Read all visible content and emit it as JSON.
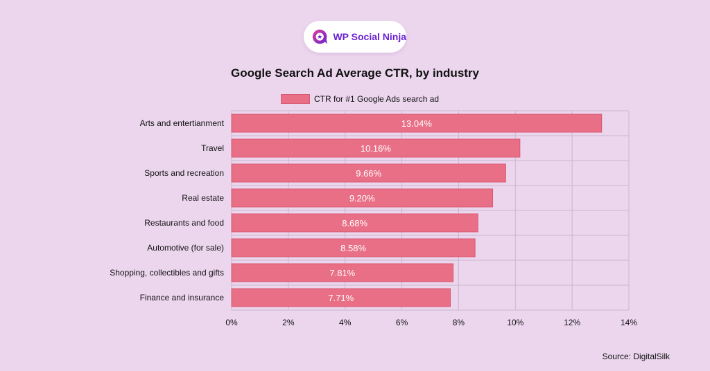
{
  "brand": {
    "name": "WP Social Ninja",
    "icon": "ninja-chat-icon",
    "colors": {
      "primary": "#6a1fd1",
      "accent": "#e0409a"
    }
  },
  "source": "Source: DigitalSilk",
  "colors": {
    "background": "#ecd6ee",
    "bar": "#e86f86",
    "bar_border": "#d85a73",
    "grid": "#c9b7cc"
  },
  "chart_data": {
    "type": "bar",
    "orientation": "horizontal",
    "title": "Google Search Ad Average CTR, by industry",
    "xlabel": "",
    "ylabel": "",
    "legend_position": "top-center",
    "grid": true,
    "xlim": [
      0,
      14
    ],
    "x_ticks": [
      "0%",
      "2%",
      "4%",
      "6%",
      "8%",
      "10%",
      "12%",
      "14%"
    ],
    "categories": [
      "Arts and entertianment",
      "Travel",
      "Sports and recreation",
      "Real estate",
      "Restaurants and food",
      "Automotive (for sale)",
      "Shopping, collectibles and gifts",
      "Finance and insurance"
    ],
    "series": [
      {
        "name": "CTR for #1 Google Ads search ad",
        "values": [
          13.04,
          10.16,
          9.66,
          9.2,
          8.68,
          8.58,
          7.81,
          7.71
        ],
        "labels": [
          "13.04%",
          "10.16%",
          "9.66%",
          "9.20%",
          "8.68%",
          "8.58%",
          "7.81%",
          "7.71%"
        ]
      }
    ]
  }
}
